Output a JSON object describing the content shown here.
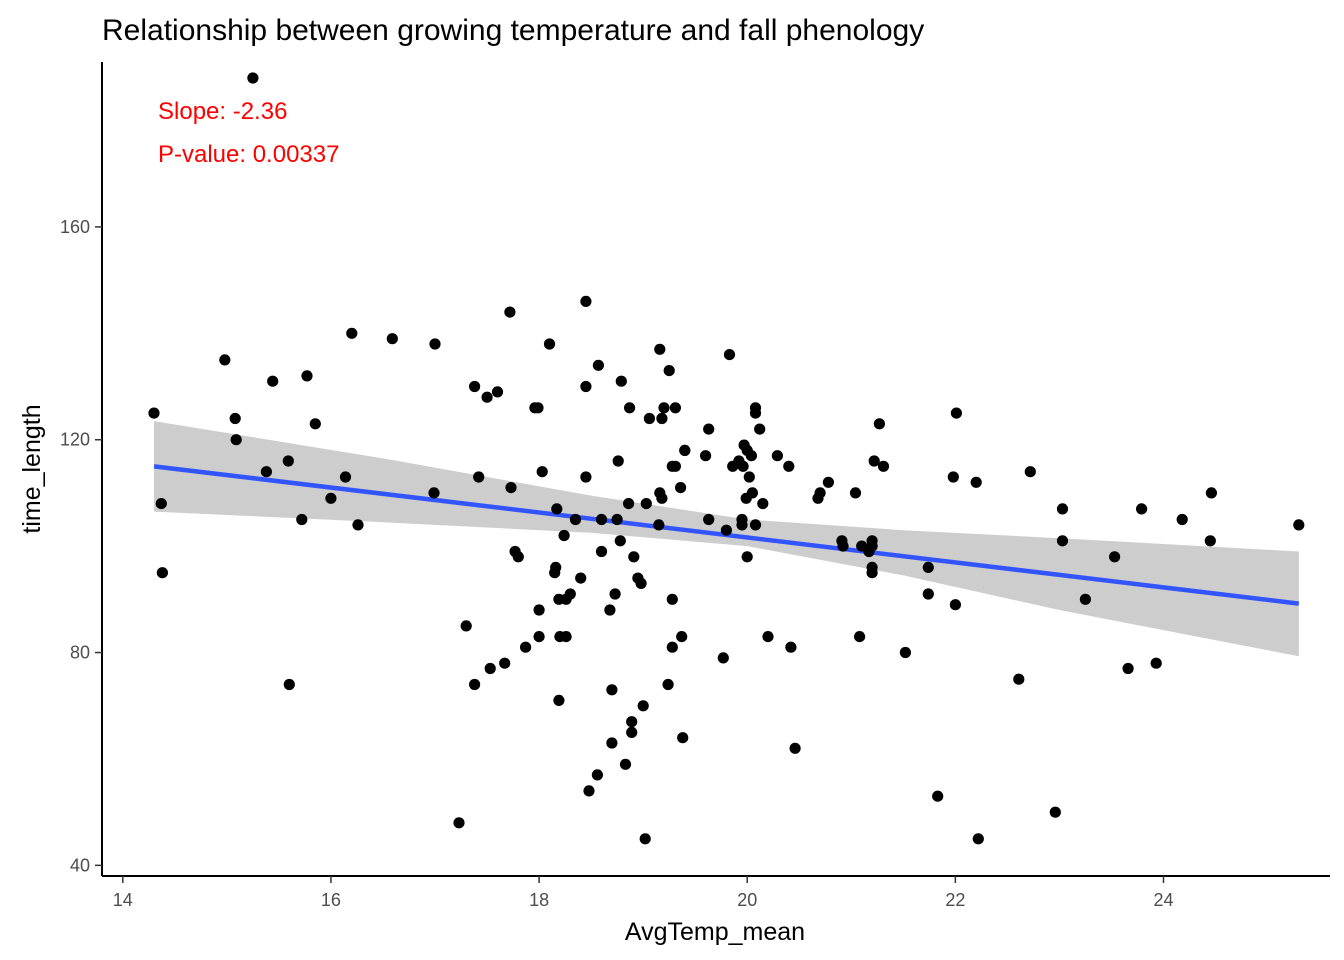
{
  "chart_data": {
    "type": "scatter",
    "title": "Relationship between growing temperature and fall phenology",
    "xlabel": "AvgTemp_mean",
    "ylabel": "time_length",
    "xlim": [
      13.8,
      25.6
    ],
    "ylim": [
      38.0,
      191.0
    ],
    "xticks": [
      14,
      16,
      18,
      20,
      22,
      24
    ],
    "yticks": [
      40,
      80,
      120,
      160
    ],
    "grid": false,
    "annotations": [
      "Slope: -2.36",
      "P-value: 0.00337"
    ],
    "colors": {
      "points": "#000000",
      "trend": "#3355ff",
      "band": "#c8c8c8",
      "annotation": "#ff0000"
    },
    "trend_line": {
      "x": [
        14.3,
        25.3
      ],
      "y": [
        115.0,
        89.2
      ]
    },
    "confidence_band": {
      "x": [
        14.3,
        16.5,
        18.5,
        20.0,
        21.5,
        23.0,
        25.3
      ],
      "upper": [
        123.5,
        116.5,
        109.5,
        105.0,
        103.0,
        101.5,
        99.0
      ],
      "lower": [
        106.5,
        104.5,
        102.5,
        100.0,
        94.5,
        88.0,
        79.3
      ]
    },
    "points": [
      {
        "x": 14.3,
        "y": 125
      },
      {
        "x": 14.37,
        "y": 108
      },
      {
        "x": 14.38,
        "y": 95
      },
      {
        "x": 14.98,
        "y": 135
      },
      {
        "x": 15.08,
        "y": 124
      },
      {
        "x": 15.09,
        "y": 120
      },
      {
        "x": 15.25,
        "y": 188
      },
      {
        "x": 15.38,
        "y": 114
      },
      {
        "x": 15.44,
        "y": 131
      },
      {
        "x": 15.59,
        "y": 116
      },
      {
        "x": 15.6,
        "y": 74
      },
      {
        "x": 15.72,
        "y": 105
      },
      {
        "x": 15.77,
        "y": 132
      },
      {
        "x": 15.85,
        "y": 123
      },
      {
        "x": 16.0,
        "y": 109
      },
      {
        "x": 16.14,
        "y": 113
      },
      {
        "x": 16.2,
        "y": 140
      },
      {
        "x": 16.26,
        "y": 104
      },
      {
        "x": 16.59,
        "y": 139
      },
      {
        "x": 16.99,
        "y": 110
      },
      {
        "x": 17.0,
        "y": 138
      },
      {
        "x": 17.23,
        "y": 48
      },
      {
        "x": 17.3,
        "y": 85
      },
      {
        "x": 17.38,
        "y": 74
      },
      {
        "x": 17.38,
        "y": 130
      },
      {
        "x": 17.42,
        "y": 113
      },
      {
        "x": 17.5,
        "y": 128
      },
      {
        "x": 17.53,
        "y": 77
      },
      {
        "x": 17.6,
        "y": 129
      },
      {
        "x": 17.67,
        "y": 78
      },
      {
        "x": 17.72,
        "y": 144
      },
      {
        "x": 17.73,
        "y": 111
      },
      {
        "x": 17.77,
        "y": 99
      },
      {
        "x": 17.8,
        "y": 98
      },
      {
        "x": 17.87,
        "y": 81
      },
      {
        "x": 17.96,
        "y": 126
      },
      {
        "x": 17.99,
        "y": 126
      },
      {
        "x": 18.0,
        "y": 83
      },
      {
        "x": 18.0,
        "y": 88
      },
      {
        "x": 18.03,
        "y": 114
      },
      {
        "x": 18.1,
        "y": 138
      },
      {
        "x": 18.15,
        "y": 95
      },
      {
        "x": 18.16,
        "y": 96
      },
      {
        "x": 18.17,
        "y": 107
      },
      {
        "x": 18.19,
        "y": 71
      },
      {
        "x": 18.19,
        "y": 90
      },
      {
        "x": 18.2,
        "y": 83
      },
      {
        "x": 18.24,
        "y": 102
      },
      {
        "x": 18.26,
        "y": 90
      },
      {
        "x": 18.26,
        "y": 83
      },
      {
        "x": 18.3,
        "y": 91
      },
      {
        "x": 18.35,
        "y": 105
      },
      {
        "x": 18.4,
        "y": 94
      },
      {
        "x": 18.45,
        "y": 130
      },
      {
        "x": 18.45,
        "y": 146
      },
      {
        "x": 18.45,
        "y": 113
      },
      {
        "x": 18.48,
        "y": 54
      },
      {
        "x": 18.56,
        "y": 57
      },
      {
        "x": 18.57,
        "y": 134
      },
      {
        "x": 18.6,
        "y": 105
      },
      {
        "x": 18.6,
        "y": 99
      },
      {
        "x": 18.68,
        "y": 88
      },
      {
        "x": 18.7,
        "y": 73
      },
      {
        "x": 18.7,
        "y": 63
      },
      {
        "x": 18.73,
        "y": 91
      },
      {
        "x": 18.75,
        "y": 105
      },
      {
        "x": 18.76,
        "y": 116
      },
      {
        "x": 18.78,
        "y": 101
      },
      {
        "x": 18.79,
        "y": 131
      },
      {
        "x": 18.83,
        "y": 59
      },
      {
        "x": 18.86,
        "y": 108
      },
      {
        "x": 18.87,
        "y": 126
      },
      {
        "x": 18.89,
        "y": 67
      },
      {
        "x": 18.89,
        "y": 65
      },
      {
        "x": 18.91,
        "y": 98
      },
      {
        "x": 18.95,
        "y": 94
      },
      {
        "x": 18.98,
        "y": 93
      },
      {
        "x": 19.0,
        "y": 70
      },
      {
        "x": 19.02,
        "y": 45
      },
      {
        "x": 19.03,
        "y": 108
      },
      {
        "x": 19.06,
        "y": 124
      },
      {
        "x": 19.15,
        "y": 104
      },
      {
        "x": 19.16,
        "y": 137
      },
      {
        "x": 19.16,
        "y": 110
      },
      {
        "x": 19.18,
        "y": 109
      },
      {
        "x": 19.18,
        "y": 124
      },
      {
        "x": 19.2,
        "y": 126
      },
      {
        "x": 19.24,
        "y": 74
      },
      {
        "x": 19.25,
        "y": 133
      },
      {
        "x": 19.28,
        "y": 115
      },
      {
        "x": 19.28,
        "y": 90
      },
      {
        "x": 19.28,
        "y": 81
      },
      {
        "x": 19.31,
        "y": 126
      },
      {
        "x": 19.31,
        "y": 115
      },
      {
        "x": 19.36,
        "y": 111
      },
      {
        "x": 19.37,
        "y": 83
      },
      {
        "x": 19.38,
        "y": 64
      },
      {
        "x": 19.4,
        "y": 118
      },
      {
        "x": 19.4,
        "y": 118
      },
      {
        "x": 19.6,
        "y": 117
      },
      {
        "x": 19.63,
        "y": 105
      },
      {
        "x": 19.63,
        "y": 122
      },
      {
        "x": 19.77,
        "y": 79
      },
      {
        "x": 19.8,
        "y": 103
      },
      {
        "x": 19.83,
        "y": 136
      },
      {
        "x": 19.86,
        "y": 115
      },
      {
        "x": 19.92,
        "y": 116
      },
      {
        "x": 19.95,
        "y": 105
      },
      {
        "x": 19.95,
        "y": 104
      },
      {
        "x": 19.96,
        "y": 115
      },
      {
        "x": 19.97,
        "y": 119
      },
      {
        "x": 19.99,
        "y": 109
      },
      {
        "x": 20.0,
        "y": 98
      },
      {
        "x": 20.0,
        "y": 118
      },
      {
        "x": 20.02,
        "y": 113
      },
      {
        "x": 20.04,
        "y": 117
      },
      {
        "x": 20.05,
        "y": 110
      },
      {
        "x": 20.08,
        "y": 126
      },
      {
        "x": 20.08,
        "y": 125
      },
      {
        "x": 20.08,
        "y": 104
      },
      {
        "x": 20.12,
        "y": 122
      },
      {
        "x": 20.15,
        "y": 108
      },
      {
        "x": 20.2,
        "y": 83
      },
      {
        "x": 20.29,
        "y": 117
      },
      {
        "x": 20.4,
        "y": 115
      },
      {
        "x": 20.42,
        "y": 81
      },
      {
        "x": 20.46,
        "y": 62
      },
      {
        "x": 20.68,
        "y": 109
      },
      {
        "x": 20.7,
        "y": 110
      },
      {
        "x": 20.78,
        "y": 112
      },
      {
        "x": 20.91,
        "y": 101
      },
      {
        "x": 20.92,
        "y": 100
      },
      {
        "x": 21.04,
        "y": 110
      },
      {
        "x": 21.08,
        "y": 83
      },
      {
        "x": 21.1,
        "y": 100
      },
      {
        "x": 21.17,
        "y": 99
      },
      {
        "x": 21.2,
        "y": 101
      },
      {
        "x": 21.2,
        "y": 100
      },
      {
        "x": 21.2,
        "y": 96
      },
      {
        "x": 21.2,
        "y": 95
      },
      {
        "x": 21.22,
        "y": 116
      },
      {
        "x": 21.27,
        "y": 123
      },
      {
        "x": 21.31,
        "y": 115
      },
      {
        "x": 21.52,
        "y": 80
      },
      {
        "x": 21.74,
        "y": 96
      },
      {
        "x": 21.74,
        "y": 91
      },
      {
        "x": 21.83,
        "y": 53
      },
      {
        "x": 21.98,
        "y": 113
      },
      {
        "x": 22.0,
        "y": 89
      },
      {
        "x": 22.01,
        "y": 125
      },
      {
        "x": 22.2,
        "y": 112
      },
      {
        "x": 22.22,
        "y": 45
      },
      {
        "x": 22.61,
        "y": 75
      },
      {
        "x": 22.72,
        "y": 114
      },
      {
        "x": 22.96,
        "y": 50
      },
      {
        "x": 23.03,
        "y": 107
      },
      {
        "x": 23.03,
        "y": 101
      },
      {
        "x": 23.25,
        "y": 90
      },
      {
        "x": 23.53,
        "y": 98
      },
      {
        "x": 23.66,
        "y": 77
      },
      {
        "x": 23.79,
        "y": 107
      },
      {
        "x": 23.93,
        "y": 78
      },
      {
        "x": 24.18,
        "y": 105
      },
      {
        "x": 24.45,
        "y": 101
      },
      {
        "x": 24.46,
        "y": 110
      },
      {
        "x": 25.3,
        "y": 104
      }
    ]
  }
}
